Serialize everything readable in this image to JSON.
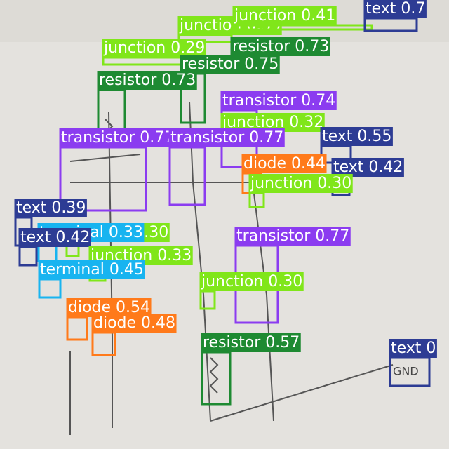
{
  "detections": [
    {
      "label": "junction 0.35",
      "color": "#80e61a"
    },
    {
      "label": "junction 0.29",
      "color": "#80e61a"
    },
    {
      "label": "junction 0.41",
      "color": "#80e61a"
    },
    {
      "label": "text 0.7",
      "color": "#2d3c94"
    },
    {
      "label": "resistor 0.73",
      "color": "#1e8a32"
    },
    {
      "label": "resistor 0.75",
      "color": "#1e8a32"
    },
    {
      "label": "resistor 0.73",
      "color": "#1e8a32"
    },
    {
      "label": "transistor 0.74",
      "color": "#8b3cf0"
    },
    {
      "label": "junction 0.32",
      "color": "#80e61a"
    },
    {
      "label": "transistor 0.77",
      "color": "#8b3cf0"
    },
    {
      "label": "transistor 0.77",
      "color": "#8b3cf0"
    },
    {
      "label": "text 0.55",
      "color": "#2d3c94"
    },
    {
      "label": "diode 0.44",
      "color": "#ff7a1a"
    },
    {
      "label": "text 0.42",
      "color": "#2d3c94"
    },
    {
      "label": "junction 0.30",
      "color": "#80e61a"
    },
    {
      "label": "text 0.39",
      "color": "#2d3c94"
    },
    {
      "label": "junction 0.30",
      "color": "#80e61a"
    },
    {
      "label": "terminal 0.33",
      "color": "#18b4f0"
    },
    {
      "label": "text 0.42",
      "color": "#2d3c94"
    },
    {
      "label": "junction 0.33",
      "color": "#80e61a"
    },
    {
      "label": "transistor 0.77",
      "color": "#8b3cf0"
    },
    {
      "label": "terminal 0.45",
      "color": "#18b4f0"
    },
    {
      "label": "junction 0.30",
      "color": "#80e61a"
    },
    {
      "label": "diode 0.54",
      "color": "#ff7a1a"
    },
    {
      "label": "diode 0.48",
      "color": "#ff7a1a"
    },
    {
      "label": "resistor 0.57",
      "color": "#1e8a32"
    },
    {
      "label": "text 0",
      "color": "#2d3c94"
    }
  ]
}
